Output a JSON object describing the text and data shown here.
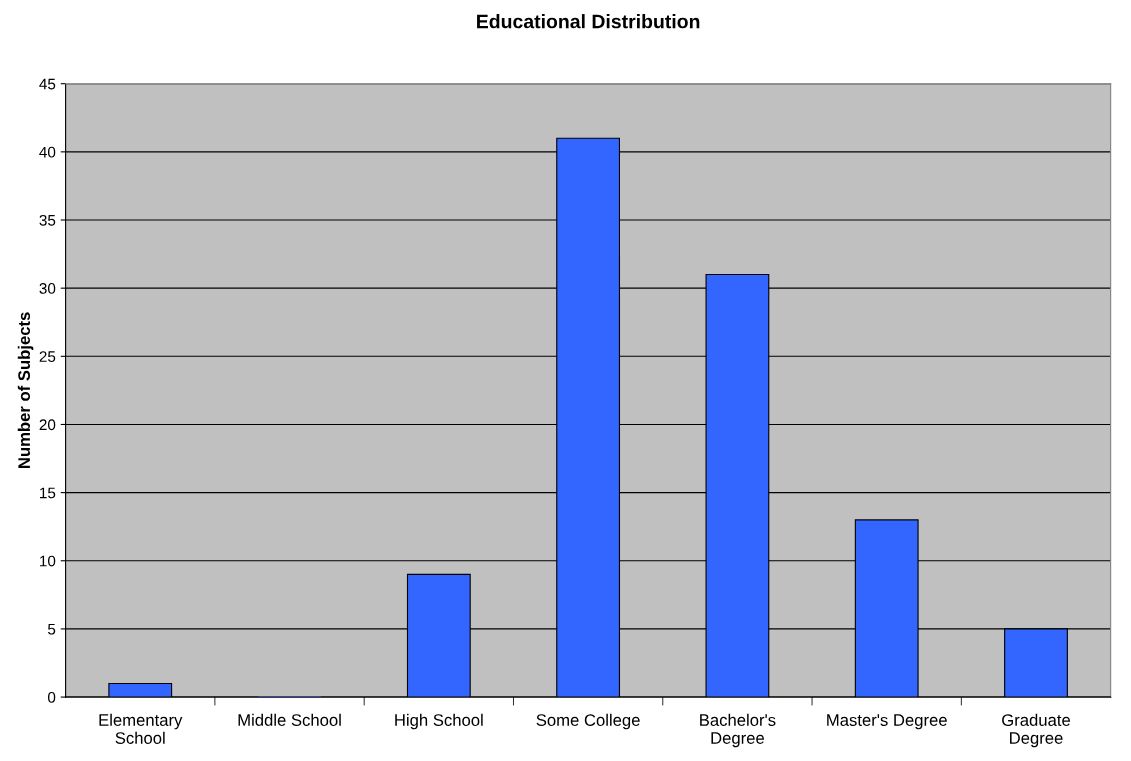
{
  "chart_data": {
    "type": "bar",
    "title": "Educational Distribution",
    "ylabel": "Number of Subjects",
    "categories": [
      "Elementary\nSchool",
      "Middle School",
      "High School",
      "Some College",
      "Bachelor's\nDegree",
      "Master's Degree",
      "Graduate\nDegree"
    ],
    "values": [
      1,
      0,
      9,
      41,
      31,
      13,
      5
    ],
    "color": "#3366ff",
    "ylim": [
      0,
      45
    ],
    "yticks": [
      0,
      5,
      10,
      15,
      20,
      25,
      30,
      35,
      40,
      45
    ],
    "grid": "y"
  }
}
